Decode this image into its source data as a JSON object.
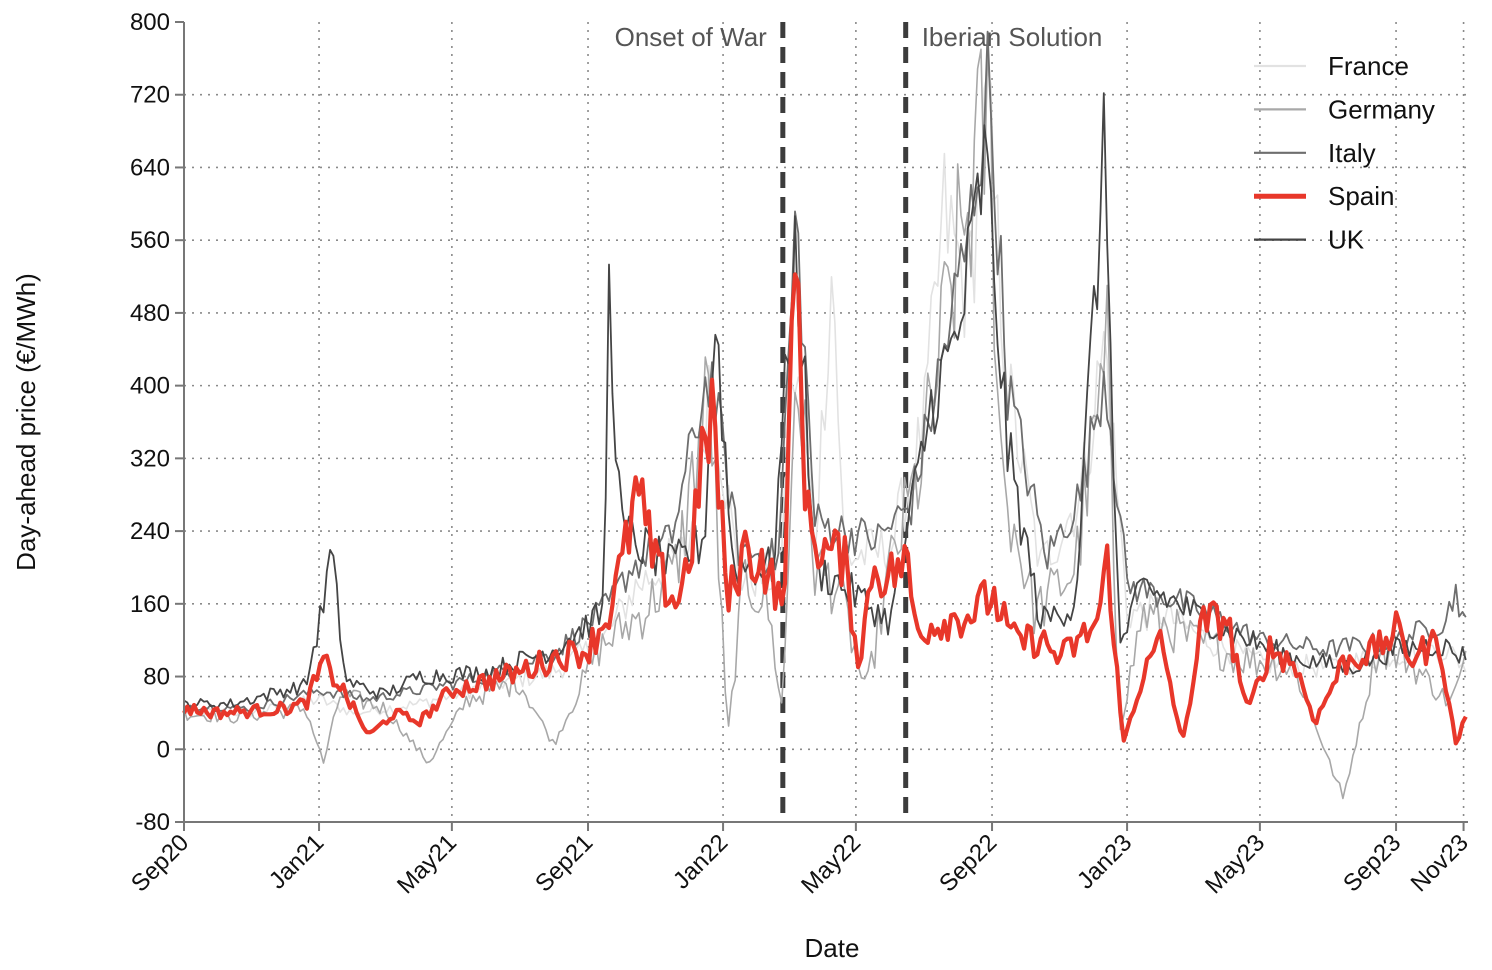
{
  "chart_data": {
    "type": "line",
    "xlabel": "Date",
    "ylabel": "Day-ahead price (€/MWh)",
    "ylim": [
      -80,
      800
    ],
    "y_ticks": [
      "800",
      "720",
      "640",
      "560",
      "480",
      "400",
      "320",
      "240",
      "160",
      "80",
      "0",
      "-80"
    ],
    "x_ticks": [
      {
        "label": "Sep20",
        "date": "2020-09-01"
      },
      {
        "label": "Jan21",
        "date": "2021-01-01"
      },
      {
        "label": "May21",
        "date": "2021-05-01"
      },
      {
        "label": "Sep21",
        "date": "2021-09-01"
      },
      {
        "label": "Jan22",
        "date": "2022-01-01"
      },
      {
        "label": "May22",
        "date": "2022-05-01"
      },
      {
        "label": "Sep22",
        "date": "2022-09-01"
      },
      {
        "label": "Jan23",
        "date": "2023-01-01"
      },
      {
        "label": "May23",
        "date": "2023-05-01"
      },
      {
        "label": "Sep23",
        "date": "2023-09-01"
      },
      {
        "label": "Nov23",
        "date": "2023-11-01"
      }
    ],
    "xlim": [
      "2020-09-01",
      "2023-11-05"
    ],
    "grid": true,
    "legend_position": "top-right",
    "events": [
      {
        "label": "Onset of War",
        "date": "2022-02-24"
      },
      {
        "label": "Iberian Solution",
        "date": "2022-06-15"
      }
    ],
    "colors": {
      "France": "#e2e2e2",
      "Germany": "#a8a8a8",
      "Italy": "#6e6e6e",
      "Spain": "#e8372a",
      "UK": "#454545",
      "event_line": "#3c3c3c",
      "grid": "#8a8a8a"
    },
    "series": [
      {
        "name": "France",
        "points": [
          [
            "2020-09-01",
            42
          ],
          [
            "2020-11-01",
            40
          ],
          [
            "2021-01-01",
            55
          ],
          [
            "2021-02-01",
            40
          ],
          [
            "2021-04-01",
            50
          ],
          [
            "2021-06-01",
            70
          ],
          [
            "2021-08-01",
            85
          ],
          [
            "2021-09-15",
            120
          ],
          [
            "2021-10-15",
            180
          ],
          [
            "2021-12-01",
            220
          ],
          [
            "2021-12-20",
            420
          ],
          [
            "2022-01-15",
            190
          ],
          [
            "2022-02-20",
            190
          ],
          [
            "2022-03-08",
            430
          ],
          [
            "2022-03-25",
            230
          ],
          [
            "2022-04-10",
            540
          ],
          [
            "2022-04-20",
            210
          ],
          [
            "2022-06-01",
            220
          ],
          [
            "2022-07-01",
            350
          ],
          [
            "2022-07-20",
            590
          ],
          [
            "2022-08-10",
            500
          ],
          [
            "2022-08-28",
            700
          ],
          [
            "2022-09-15",
            400
          ],
          [
            "2022-10-15",
            200
          ],
          [
            "2022-11-20",
            280
          ],
          [
            "2022-12-12",
            450
          ],
          [
            "2023-01-01",
            150
          ],
          [
            "2023-02-01",
            150
          ],
          [
            "2023-03-15",
            120
          ],
          [
            "2023-05-01",
            95
          ],
          [
            "2023-07-01",
            90
          ],
          [
            "2023-09-01",
            105
          ],
          [
            "2023-10-15",
            110
          ],
          [
            "2023-11-05",
            90
          ]
        ]
      },
      {
        "name": "Germany",
        "points": [
          [
            "2020-09-01",
            40
          ],
          [
            "2020-10-15",
            35
          ],
          [
            "2020-12-20",
            45
          ],
          [
            "2021-01-05",
            -15
          ],
          [
            "2021-01-20",
            60
          ],
          [
            "2021-03-01",
            45
          ],
          [
            "2021-04-10",
            -15
          ],
          [
            "2021-05-15",
            55
          ],
          [
            "2021-07-01",
            75
          ],
          [
            "2021-08-01",
            5
          ],
          [
            "2021-09-10",
            110
          ],
          [
            "2021-10-20",
            150
          ],
          [
            "2021-11-20",
            200
          ],
          [
            "2021-12-20",
            400
          ],
          [
            "2022-01-05",
            10
          ],
          [
            "2022-01-20",
            190
          ],
          [
            "2022-02-10",
            160
          ],
          [
            "2022-02-24",
            40
          ],
          [
            "2022-03-08",
            440
          ],
          [
            "2022-03-25",
            200
          ],
          [
            "2022-04-15",
            180
          ],
          [
            "2022-05-10",
            60
          ],
          [
            "2022-06-01",
            200
          ],
          [
            "2022-07-01",
            320
          ],
          [
            "2022-07-25",
            500
          ],
          [
            "2022-08-29",
            700
          ],
          [
            "2022-09-10",
            300
          ],
          [
            "2022-10-10",
            150
          ],
          [
            "2022-11-15",
            200
          ],
          [
            "2022-12-14",
            430
          ],
          [
            "2022-12-25",
            20
          ],
          [
            "2023-01-15",
            150
          ],
          [
            "2023-03-01",
            120
          ],
          [
            "2023-04-15",
            100
          ],
          [
            "2023-06-01",
            90
          ],
          [
            "2023-07-15",
            -55
          ],
          [
            "2023-08-15",
            110
          ],
          [
            "2023-09-10",
            100
          ],
          [
            "2023-10-20",
            50
          ],
          [
            "2023-11-05",
            100
          ]
        ]
      },
      {
        "name": "Italy",
        "points": [
          [
            "2020-09-01",
            48
          ],
          [
            "2020-11-01",
            45
          ],
          [
            "2021-01-01",
            65
          ],
          [
            "2021-02-15",
            55
          ],
          [
            "2021-04-01",
            65
          ],
          [
            "2021-06-01",
            80
          ],
          [
            "2021-08-01",
            105
          ],
          [
            "2021-09-20",
            160
          ],
          [
            "2021-10-10",
            200
          ],
          [
            "2021-11-15",
            230
          ],
          [
            "2021-12-20",
            420
          ],
          [
            "2022-01-15",
            220
          ],
          [
            "2022-02-20",
            210
          ],
          [
            "2022-03-08",
            590
          ],
          [
            "2022-03-25",
            250
          ],
          [
            "2022-04-20",
            240
          ],
          [
            "2022-05-20",
            230
          ],
          [
            "2022-06-20",
            270
          ],
          [
            "2022-07-20",
            440
          ],
          [
            "2022-08-10",
            560
          ],
          [
            "2022-08-29",
            740
          ],
          [
            "2022-09-15",
            400
          ],
          [
            "2022-10-20",
            210
          ],
          [
            "2022-11-20",
            280
          ],
          [
            "2022-12-12",
            420
          ],
          [
            "2023-01-01",
            180
          ],
          [
            "2023-02-01",
            170
          ],
          [
            "2023-03-15",
            150
          ],
          [
            "2023-05-01",
            120
          ],
          [
            "2023-07-01",
            110
          ],
          [
            "2023-09-01",
            120
          ],
          [
            "2023-10-15",
            140
          ],
          [
            "2023-10-25",
            175
          ],
          [
            "2023-11-05",
            125
          ]
        ]
      },
      {
        "name": "Spain",
        "points": [
          [
            "2020-09-01",
            45
          ],
          [
            "2020-10-01",
            40
          ],
          [
            "2020-11-01",
            42
          ],
          [
            "2020-12-01",
            45
          ],
          [
            "2020-12-20",
            50
          ],
          [
            "2021-01-05",
            95
          ],
          [
            "2021-01-20",
            70
          ],
          [
            "2021-02-15",
            15
          ],
          [
            "2021-03-10",
            40
          ],
          [
            "2021-04-01",
            30
          ],
          [
            "2021-05-01",
            65
          ],
          [
            "2021-06-01",
            75
          ],
          [
            "2021-07-01",
            85
          ],
          [
            "2021-08-01",
            100
          ],
          [
            "2021-09-01",
            110
          ],
          [
            "2021-09-20",
            150
          ],
          [
            "2021-10-05",
            220
          ],
          [
            "2021-10-15",
            285
          ],
          [
            "2021-11-01",
            200
          ],
          [
            "2021-11-20",
            160
          ],
          [
            "2021-12-01",
            210
          ],
          [
            "2021-12-22",
            380
          ],
          [
            "2022-01-05",
            160
          ],
          [
            "2022-01-20",
            220
          ],
          [
            "2022-02-10",
            200
          ],
          [
            "2022-02-24",
            150
          ],
          [
            "2022-03-08",
            545
          ],
          [
            "2022-03-18",
            250
          ],
          [
            "2022-04-01",
            220
          ],
          [
            "2022-04-20",
            210
          ],
          [
            "2022-05-05",
            90
          ],
          [
            "2022-05-15",
            200
          ],
          [
            "2022-06-01",
            190
          ],
          [
            "2022-06-15",
            210
          ],
          [
            "2022-06-25",
            130
          ],
          [
            "2022-07-15",
            140
          ],
          [
            "2022-08-15",
            150
          ],
          [
            "2022-09-01",
            170
          ],
          [
            "2022-09-20",
            120
          ],
          [
            "2022-10-15",
            120
          ],
          [
            "2022-11-01",
            100
          ],
          [
            "2022-11-20",
            120
          ],
          [
            "2022-12-05",
            140
          ],
          [
            "2022-12-15",
            210
          ],
          [
            "2022-12-28",
            5
          ],
          [
            "2023-01-15",
            80
          ],
          [
            "2023-02-01",
            120
          ],
          [
            "2023-02-20",
            5
          ],
          [
            "2023-03-10",
            140
          ],
          [
            "2023-04-01",
            145
          ],
          [
            "2023-04-20",
            40
          ],
          [
            "2023-05-10",
            110
          ],
          [
            "2023-06-01",
            95
          ],
          [
            "2023-06-20",
            30
          ],
          [
            "2023-07-15",
            95
          ],
          [
            "2023-08-15",
            110
          ],
          [
            "2023-09-01",
            130
          ],
          [
            "2023-09-15",
            100
          ],
          [
            "2023-10-10",
            120
          ],
          [
            "2023-10-25",
            5
          ],
          [
            "2023-11-05",
            45
          ]
        ]
      },
      {
        "name": "UK",
        "points": [
          [
            "2020-09-01",
            50
          ],
          [
            "2020-10-15",
            50
          ],
          [
            "2020-12-01",
            65
          ],
          [
            "2020-12-20",
            70
          ],
          [
            "2021-01-05",
            160
          ],
          [
            "2021-01-12",
            220
          ],
          [
            "2021-01-25",
            75
          ],
          [
            "2021-03-01",
            60
          ],
          [
            "2021-04-01",
            80
          ],
          [
            "2021-06-01",
            85
          ],
          [
            "2021-08-01",
            110
          ],
          [
            "2021-09-15",
            150
          ],
          [
            "2021-09-20",
            500
          ],
          [
            "2021-10-01",
            240
          ],
          [
            "2021-11-15",
            200
          ],
          [
            "2021-12-15",
            230
          ],
          [
            "2021-12-25",
            480
          ],
          [
            "2022-01-10",
            200
          ],
          [
            "2022-02-15",
            200
          ],
          [
            "2022-03-08",
            560
          ],
          [
            "2022-03-25",
            200
          ],
          [
            "2022-05-01",
            170
          ],
          [
            "2022-06-01",
            140
          ],
          [
            "2022-07-10",
            390
          ],
          [
            "2022-08-01",
            450
          ],
          [
            "2022-08-26",
            650
          ],
          [
            "2022-09-15",
            330
          ],
          [
            "2022-10-15",
            140
          ],
          [
            "2022-11-15",
            160
          ],
          [
            "2022-12-12",
            665
          ],
          [
            "2022-12-25",
            110
          ],
          [
            "2023-01-15",
            180
          ],
          [
            "2023-02-15",
            160
          ],
          [
            "2023-04-01",
            130
          ],
          [
            "2023-06-01",
            100
          ],
          [
            "2023-07-20",
            90
          ],
          [
            "2023-09-01",
            110
          ],
          [
            "2023-10-10",
            115
          ],
          [
            "2023-11-05",
            100
          ]
        ]
      }
    ]
  }
}
